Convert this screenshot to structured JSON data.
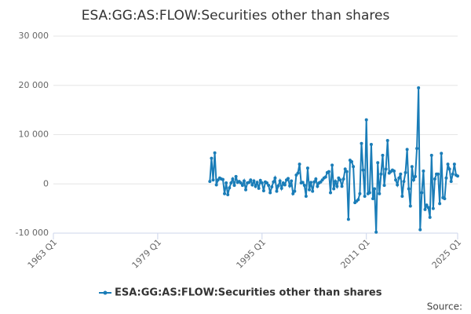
{
  "chart_data": {
    "type": "line",
    "title": "ESA:GG:AS:FLOW:Securities other than shares",
    "source": "Source:",
    "xlim": [
      1963,
      2025
    ],
    "xticks": [
      {
        "value": 1963,
        "label": "1963 Q1"
      },
      {
        "value": 1979,
        "label": "1979 Q1"
      },
      {
        "value": 1995,
        "label": "1995 Q1"
      },
      {
        "value": 2011,
        "label": "2011 Q1"
      },
      {
        "value": 2025,
        "label": "2025 Q1"
      }
    ],
    "ylim": [
      -10000,
      30000
    ],
    "yticks": [
      {
        "value": -10000,
        "label": "-10 000"
      },
      0,
      {
        "value": 10000,
        "label": "10 000"
      },
      {
        "value": 20000,
        "label": "20 000"
      },
      {
        "value": 30000,
        "label": "30 000"
      }
    ],
    "grid": true,
    "legend": "bottom",
    "x": [
      1987,
      1987.25,
      1987.5,
      1987.75,
      1988,
      1988.25,
      1988.5,
      1988.75,
      1989,
      1989.25,
      1989.5,
      1989.75,
      1990,
      1990.25,
      1990.5,
      1990.75,
      1991,
      1991.25,
      1991.5,
      1991.75,
      1992,
      1992.25,
      1992.5,
      1992.75,
      1993,
      1993.25,
      1993.5,
      1993.75,
      1994,
      1994.25,
      1994.5,
      1994.75,
      1995,
      1995.25,
      1995.5,
      1995.75,
      1996,
      1996.25,
      1996.5,
      1996.75,
      1997,
      1997.25,
      1997.5,
      1997.75,
      1998,
      1998.25,
      1998.5,
      1998.75,
      1999,
      1999.25,
      1999.5,
      1999.75,
      2000,
      2000.25,
      2000.5,
      2000.75,
      2001,
      2001.25,
      2001.5,
      2001.75,
      2002,
      2002.25,
      2002.5,
      2002.75,
      2003,
      2003.25,
      2003.5,
      2003.75,
      2004,
      2004.25,
      2004.5,
      2004.75,
      2005,
      2005.25,
      2005.5,
      2005.75,
      2006,
      2006.25,
      2006.5,
      2006.75,
      2007,
      2007.25,
      2007.5,
      2007.75,
      2008,
      2008.25,
      2008.5,
      2008.75,
      2009,
      2009.25,
      2009.5,
      2009.75,
      2010,
      2010.25,
      2010.5,
      2010.75,
      2011,
      2011.25,
      2011.5,
      2011.75,
      2012,
      2012.25,
      2012.5,
      2012.75,
      2013,
      2013.25,
      2013.5,
      2013.75,
      2014,
      2014.25,
      2014.5,
      2014.75,
      2015,
      2015.25,
      2015.5,
      2015.75,
      2016,
      2016.25,
      2016.5,
      2016.75,
      2017,
      2017.25,
      2017.5,
      2017.75,
      2018,
      2018.25,
      2018.5,
      2018.75,
      2019,
      2019.25,
      2019.5,
      2019.75,
      2020,
      2020.25,
      2020.5,
      2020.75,
      2021,
      2021.25,
      2021.5,
      2021.75,
      2022,
      2022.25,
      2022.5,
      2022.75,
      2023,
      2023.25,
      2023.5,
      2023.75,
      2024,
      2024.25,
      2024.5,
      2024.75,
      2025
    ],
    "series": [
      {
        "name": "ESA:GG:AS:FLOW:Securities other than shares",
        "color": "#1a7db8",
        "values": [
          500,
          5200,
          800,
          6300,
          -200,
          800,
          1200,
          1000,
          900,
          -2000,
          200,
          -2200,
          -800,
          200,
          1000,
          -300,
          1500,
          300,
          500,
          200,
          -300,
          600,
          -1200,
          200,
          300,
          800,
          -200,
          600,
          -500,
          300,
          -900,
          700,
          200,
          -1400,
          400,
          200,
          -300,
          -1800,
          -600,
          400,
          1200,
          -1500,
          -400,
          600,
          -900,
          200,
          -200,
          800,
          1100,
          -400,
          600,
          -2000,
          -1500,
          1800,
          2200,
          4000,
          200,
          300,
          -300,
          -2500,
          3200,
          -1200,
          300,
          -1500,
          400,
          1000,
          -500,
          200,
          400,
          800,
          1200,
          1400,
          2300,
          2500,
          -1800,
          3800,
          -1000,
          500,
          -500,
          1200,
          800,
          -500,
          1000,
          3000,
          2500,
          -7200,
          4800,
          4500,
          3500,
          -3800,
          -3500,
          -3200,
          -2000,
          8200,
          2800,
          -2500,
          13000,
          -2000,
          -1800,
          8000,
          -3000,
          -1000,
          -9800,
          4300,
          -2000,
          2000,
          5800,
          -300,
          3000,
          8800,
          2200,
          2500,
          2800,
          2600,
          800,
          -200,
          1200,
          2000,
          -2500,
          500,
          2300,
          7000,
          -1000,
          -4500,
          3500,
          800,
          1500,
          7200,
          19500,
          -9300,
          -1800,
          2600,
          -5200,
          -4300,
          -4800,
          -6800,
          5800,
          -5000,
          1000,
          2000,
          2000,
          -4000,
          6200,
          -2800,
          -3000,
          1200,
          4000,
          3000,
          500,
          2000,
          4000,
          1800,
          1600
        ]
      }
    ]
  }
}
